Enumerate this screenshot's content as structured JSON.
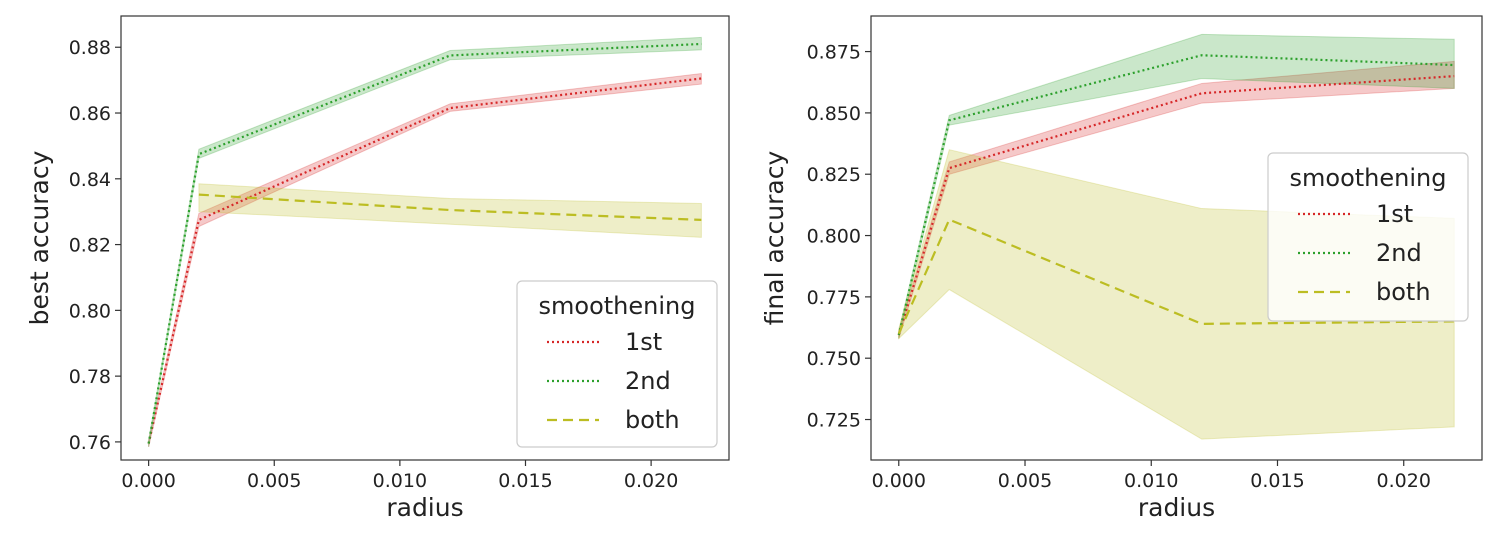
{
  "chart_data": [
    {
      "type": "line",
      "xlabel": "radius",
      "ylabel": "best accuracy",
      "xlim": [
        -0.0011,
        0.0231
      ],
      "ylim": [
        0.7545,
        0.8895
      ],
      "xticks": [
        0.0,
        0.005,
        0.01,
        0.015,
        0.02
      ],
      "xtick_labels": [
        "0.000",
        "0.005",
        "0.010",
        "0.015",
        "0.020"
      ],
      "yticks": [
        0.76,
        0.78,
        0.8,
        0.82,
        0.84,
        0.86,
        0.88
      ],
      "ytick_labels": [
        "0.76",
        "0.78",
        "0.80",
        "0.82",
        "0.84",
        "0.86",
        "0.88"
      ],
      "grid": false,
      "legend": {
        "title": "smoothening",
        "placement": "lower-right"
      },
      "series": [
        {
          "name": "1st",
          "color": "#d62728",
          "dash": "dotted",
          "x": [
            0.0,
            0.002,
            0.012,
            0.022
          ],
          "y": [
            0.7595,
            0.8275,
            0.8615,
            0.8705
          ],
          "lower": [
            0.7585,
            0.8255,
            0.8605,
            0.8688
          ],
          "upper": [
            0.7605,
            0.8295,
            0.8628,
            0.872
          ]
        },
        {
          "name": "2nd",
          "color": "#2ca02c",
          "dash": "dotted",
          "x": [
            0.0,
            0.002,
            0.012,
            0.022
          ],
          "y": [
            0.7595,
            0.8475,
            0.8775,
            0.881
          ],
          "lower": [
            0.7585,
            0.8462,
            0.8762,
            0.8792
          ],
          "upper": [
            0.7605,
            0.849,
            0.879,
            0.883
          ]
        },
        {
          "name": "both",
          "color": "#bcbd22",
          "dash": "dashed",
          "x": [
            0.002,
            0.012,
            0.022
          ],
          "y": [
            0.8352,
            0.8305,
            0.8275
          ],
          "lower": [
            0.83,
            0.8262,
            0.8222
          ],
          "upper": [
            0.8385,
            0.834,
            0.8325
          ]
        }
      ]
    },
    {
      "type": "line",
      "xlabel": "radius",
      "ylabel": "final accuracy",
      "xlim": [
        -0.0011,
        0.0231
      ],
      "ylim": [
        0.7085,
        0.8895
      ],
      "xticks": [
        0.0,
        0.005,
        0.01,
        0.015,
        0.02
      ],
      "xtick_labels": [
        "0.000",
        "0.005",
        "0.010",
        "0.015",
        "0.020"
      ],
      "yticks": [
        0.725,
        0.75,
        0.775,
        0.8,
        0.825,
        0.85,
        0.875
      ],
      "ytick_labels": [
        "0.725",
        "0.750",
        "0.775",
        "0.800",
        "0.825",
        "0.850",
        "0.875"
      ],
      "grid": false,
      "legend": {
        "title": "smoothening",
        "placement": "center-right"
      },
      "series": [
        {
          "name": "1st",
          "color": "#d62728",
          "dash": "dotted",
          "x": [
            0.0,
            0.002,
            0.012,
            0.022
          ],
          "y": [
            0.7595,
            0.8275,
            0.858,
            0.865
          ],
          "lower": [
            0.758,
            0.825,
            0.854,
            0.86
          ],
          "upper": [
            0.761,
            0.83,
            0.862,
            0.871
          ]
        },
        {
          "name": "2nd",
          "color": "#2ca02c",
          "dash": "dotted",
          "x": [
            0.0,
            0.002,
            0.012,
            0.022
          ],
          "y": [
            0.7595,
            0.847,
            0.8735,
            0.8695
          ],
          "lower": [
            0.758,
            0.845,
            0.864,
            0.86
          ],
          "upper": [
            0.761,
            0.849,
            0.882,
            0.88
          ]
        },
        {
          "name": "both",
          "color": "#bcbd22",
          "dash": "dashed",
          "x": [
            0.0,
            0.002,
            0.012,
            0.022
          ],
          "y": [
            0.76,
            0.8065,
            0.764,
            0.765
          ],
          "lower": [
            0.758,
            0.778,
            0.717,
            0.722
          ],
          "upper": [
            0.762,
            0.835,
            0.811,
            0.807
          ]
        }
      ]
    }
  ]
}
